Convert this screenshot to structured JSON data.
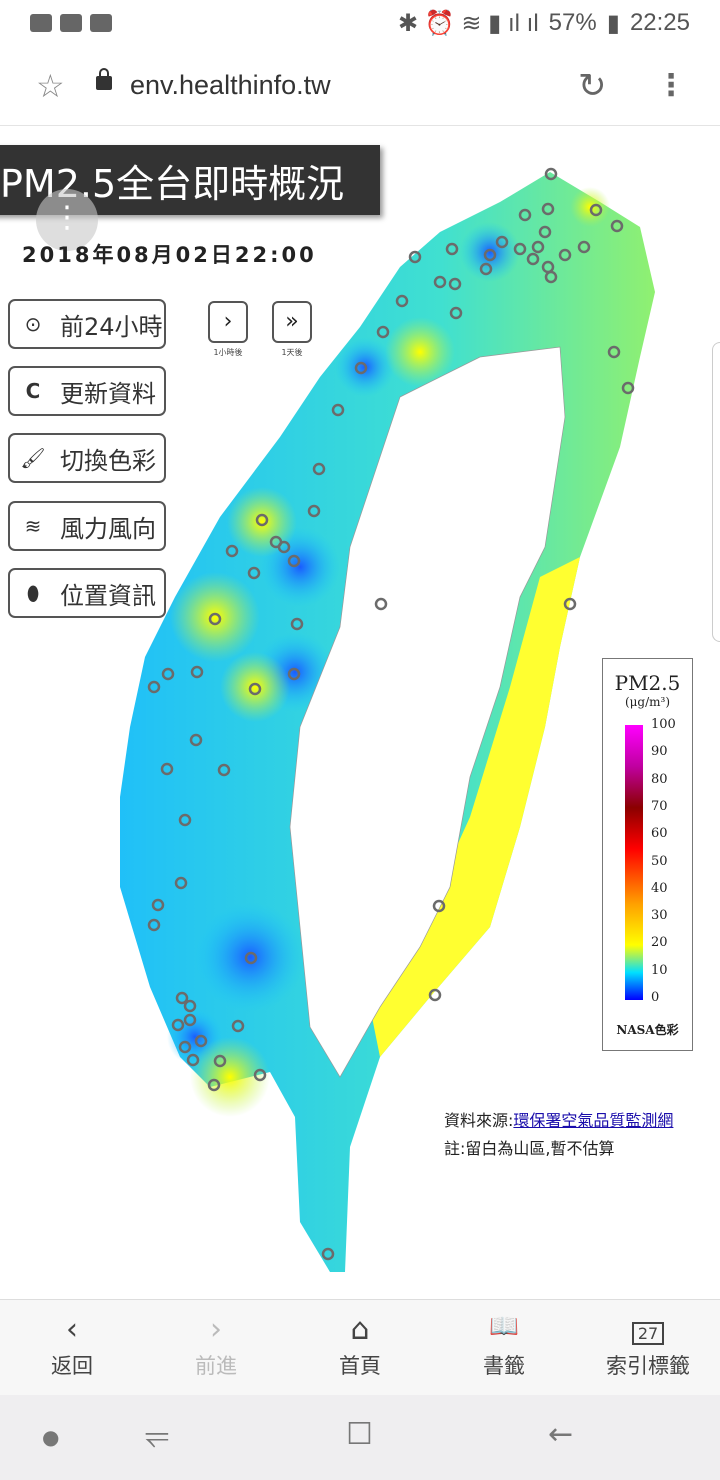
{
  "status": {
    "battery": "57%",
    "time": "22:25"
  },
  "browser": {
    "url": "env.healthinfo.tw"
  },
  "page": {
    "title": "PM2.5全台即時概況",
    "datetime": "2018年08月02日22:00",
    "buttons": [
      {
        "label": "前24小時",
        "icon": "play-circle-icon"
      },
      {
        "label": "更新資料",
        "icon": "refresh-icon"
      },
      {
        "label": "切換色彩",
        "icon": "paintbrush-icon"
      },
      {
        "label": "風力風向",
        "icon": "wind-icon"
      },
      {
        "label": "位置資訊",
        "icon": "location-pin-icon"
      }
    ],
    "step": [
      {
        "glyph": "›",
        "label": "1小時後"
      },
      {
        "glyph": "»",
        "label": "1天後"
      }
    ],
    "legend": {
      "title": "PM2.5",
      "unit": "(μg/m³)",
      "ticks": [
        "100",
        "90",
        "80",
        "70",
        "60",
        "50",
        "40",
        "30",
        "20",
        "10",
        "0"
      ],
      "scheme": "NASA色彩"
    },
    "source_label": "資料來源:",
    "source_link": "環保署空氣品質監測網",
    "note": "註:留白為山區,暫不估算"
  },
  "bottom_nav": [
    {
      "label": "返回",
      "glyph": "‹"
    },
    {
      "label": "前進",
      "glyph": "›"
    },
    {
      "label": "首頁",
      "glyph": "⌂"
    },
    {
      "label": "書籤",
      "glyph": "📖"
    },
    {
      "label": "索引標籤",
      "glyph": "27"
    }
  ],
  "colors": {
    "low": "#0000ff",
    "mid": "#00e0ff",
    "yellow": "#ffff00"
  }
}
